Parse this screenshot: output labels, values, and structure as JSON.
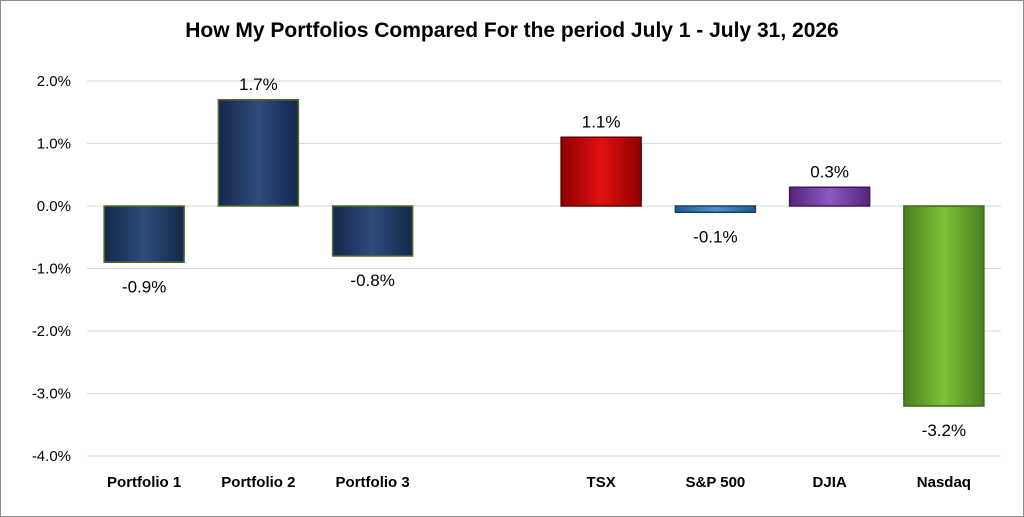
{
  "chart_data": {
    "type": "bar",
    "title": "How My Portfolios Compared For the period July 1 - July 31, 2026",
    "xlabel": "",
    "ylabel": "",
    "ylim": [
      -4.0,
      2.0
    ],
    "yticks": [
      2.0,
      1.0,
      0.0,
      -1.0,
      -2.0,
      -3.0,
      -4.0
    ],
    "ytick_labels": [
      "2.0%",
      "1.0%",
      "0.0%",
      "-1.0%",
      "-2.0%",
      "-3.0%",
      "-4.0%"
    ],
    "grid": true,
    "legend": "none",
    "categories": [
      "Portfolio 1",
      "Portfolio 2",
      "Portfolio 3",
      "",
      "TSX",
      "S&P 500",
      "DJIA",
      "Nasdaq"
    ],
    "values": [
      -0.9,
      1.7,
      -0.8,
      null,
      1.1,
      -0.1,
      0.3,
      -3.2
    ],
    "data_labels": [
      "-0.9%",
      "1.7%",
      "-0.8%",
      "",
      "1.1%",
      "-0.1%",
      "0.3%",
      "-3.2%"
    ],
    "colors": [
      "#1f3864",
      "#1f3864",
      "#1f3864",
      "",
      "#c00000",
      "#2e75b6",
      "#7030a0",
      "#70ad47"
    ]
  }
}
